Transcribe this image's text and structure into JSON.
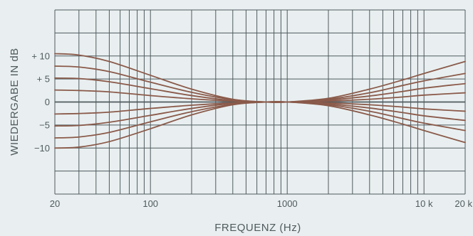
{
  "chart_data": {
    "type": "line",
    "title": "",
    "xlabel": "FREQUENZ (Hz)",
    "ylabel": "WIEDERGABE IN dB",
    "x_scale": "log",
    "xlim": [
      20,
      20000
    ],
    "ylim": [
      -20,
      20
    ],
    "x_tick_labels": [
      {
        "value": 20,
        "label": "20"
      },
      {
        "value": 100,
        "label": "100"
      },
      {
        "value": 1000,
        "label": "1000"
      },
      {
        "value": 10000,
        "label": "10 k"
      },
      {
        "value": 20000,
        "label": "20 k"
      }
    ],
    "y_tick_labels": [
      {
        "value": 10,
        "label": "+ 10"
      },
      {
        "value": 5,
        "label": "+ 5"
      },
      {
        "value": 0,
        "label": "0"
      },
      {
        "value": -5,
        "label": "−5"
      },
      {
        "value": -10,
        "label": "−10"
      }
    ],
    "grid": true,
    "x_grid_values": [
      20,
      30,
      40,
      50,
      60,
      70,
      80,
      90,
      100,
      200,
      300,
      400,
      500,
      600,
      700,
      800,
      900,
      1000,
      2000,
      3000,
      4000,
      5000,
      6000,
      7000,
      8000,
      9000,
      10000,
      20000
    ],
    "y_grid_values": [
      -20,
      -15,
      -10,
      -5,
      0,
      5,
      10,
      15,
      20
    ],
    "x": [
      20,
      30,
      50,
      100,
      200,
      400,
      700,
      1000,
      2000,
      4000,
      7000,
      10000,
      20000
    ],
    "series": [
      {
        "values": [
          10.5,
          10.2,
          8.8,
          5.8,
          2.8,
          0.6,
          0.0,
          0.0,
          0.8,
          2.8,
          4.8,
          6.2,
          8.8
        ]
      },
      {
        "values": [
          7.8,
          7.6,
          6.6,
          4.3,
          2.1,
          0.5,
          0.0,
          0.0,
          0.6,
          2.0,
          3.6,
          4.6,
          6.2
        ]
      },
      {
        "values": [
          5.2,
          5.1,
          4.4,
          2.9,
          1.4,
          0.3,
          0.0,
          0.0,
          0.4,
          1.3,
          2.3,
          3.0,
          4.0
        ]
      },
      {
        "values": [
          2.6,
          2.5,
          2.2,
          1.4,
          0.7,
          0.2,
          0.0,
          0.0,
          0.2,
          0.6,
          1.1,
          1.5,
          2.0
        ]
      },
      {
        "values": [
          -2.6,
          -2.5,
          -2.2,
          -1.4,
          -0.7,
          -0.2,
          0.0,
          0.0,
          -0.2,
          -0.6,
          -1.1,
          -1.5,
          -2.0
        ]
      },
      {
        "values": [
          -5.2,
          -5.1,
          -4.4,
          -2.9,
          -1.4,
          -0.3,
          0.0,
          0.0,
          -0.4,
          -1.3,
          -2.3,
          -3.0,
          -4.0
        ]
      },
      {
        "values": [
          -7.8,
          -7.6,
          -6.6,
          -4.3,
          -2.1,
          -0.5,
          0.0,
          0.0,
          -0.6,
          -2.0,
          -3.6,
          -4.6,
          -6.2
        ]
      },
      {
        "values": [
          -10.0,
          -9.8,
          -8.6,
          -5.8,
          -2.8,
          -0.6,
          0.0,
          0.0,
          -0.8,
          -2.8,
          -4.8,
          -6.2,
          -8.8
        ]
      }
    ],
    "colors": {
      "background": "#e9eff0",
      "grid": "#4f5a5e",
      "curve": "#8a5a4a",
      "text": "#4f5a5e"
    }
  }
}
